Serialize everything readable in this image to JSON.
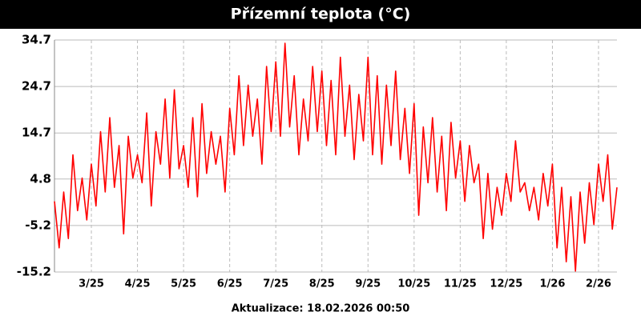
{
  "chart_data": {
    "type": "line",
    "title": "Přízemní teplota (°C)",
    "footer": "Aktualizace: 18.02.2026 00:50",
    "categories": [
      null,
      null,
      null,
      null,
      null,
      null,
      null,
      null,
      "3/25",
      null,
      null,
      null,
      null,
      null,
      null,
      null,
      null,
      null,
      "4/25",
      null,
      null,
      null,
      null,
      null,
      null,
      null,
      null,
      null,
      "5/25",
      null,
      null,
      null,
      null,
      null,
      null,
      null,
      null,
      null,
      "6/25",
      null,
      null,
      null,
      null,
      null,
      null,
      null,
      null,
      null,
      "7/25",
      null,
      null,
      null,
      null,
      null,
      null,
      null,
      null,
      null,
      "8/25",
      null,
      null,
      null,
      null,
      null,
      null,
      null,
      null,
      null,
      "9/25",
      null,
      null,
      null,
      null,
      null,
      null,
      null,
      null,
      null,
      "10/25",
      null,
      null,
      null,
      null,
      null,
      null,
      null,
      null,
      null,
      "11/25",
      null,
      null,
      null,
      null,
      null,
      null,
      null,
      null,
      null,
      "12/25",
      null,
      null,
      null,
      null,
      null,
      null,
      null,
      null,
      null,
      "1/26",
      null,
      null,
      null,
      null,
      null,
      null,
      null,
      null,
      null,
      "2/26",
      null,
      null,
      null,
      null
    ],
    "series": [
      {
        "color": "#ff0000",
        "values": [
          0,
          -10,
          2,
          -8,
          10,
          -2,
          5,
          -4,
          8,
          -1,
          15,
          2,
          18,
          3,
          12,
          -7,
          14,
          5,
          10,
          4,
          19,
          -1,
          15,
          8,
          22,
          5,
          24,
          7,
          12,
          3,
          18,
          1,
          21,
          6,
          15,
          8,
          14,
          2,
          20,
          10,
          27,
          12,
          25,
          14,
          22,
          8,
          29,
          15,
          30,
          14,
          34,
          16,
          27,
          10,
          22,
          13,
          29,
          15,
          28,
          12,
          26,
          10,
          31,
          14,
          25,
          9,
          23,
          13,
          31,
          10,
          27,
          8,
          25,
          12,
          28,
          9,
          20,
          6,
          21,
          -3,
          16,
          4,
          18,
          2,
          14,
          -2,
          17,
          5,
          13,
          0,
          12,
          4,
          8,
          -8,
          6,
          -6,
          3,
          -3,
          6,
          0,
          13,
          2,
          4,
          -2,
          3,
          -4,
          6,
          -1,
          8,
          -10,
          3,
          -13,
          1,
          -15,
          2,
          -9,
          4,
          -5,
          8,
          0,
          10,
          -6,
          3
        ]
      }
    ],
    "ylim": [
      -15.2,
      34.7
    ],
    "yticks": [
      -15.2,
      -5.2,
      4.8,
      14.7,
      24.7,
      34.7
    ],
    "grid": true
  }
}
